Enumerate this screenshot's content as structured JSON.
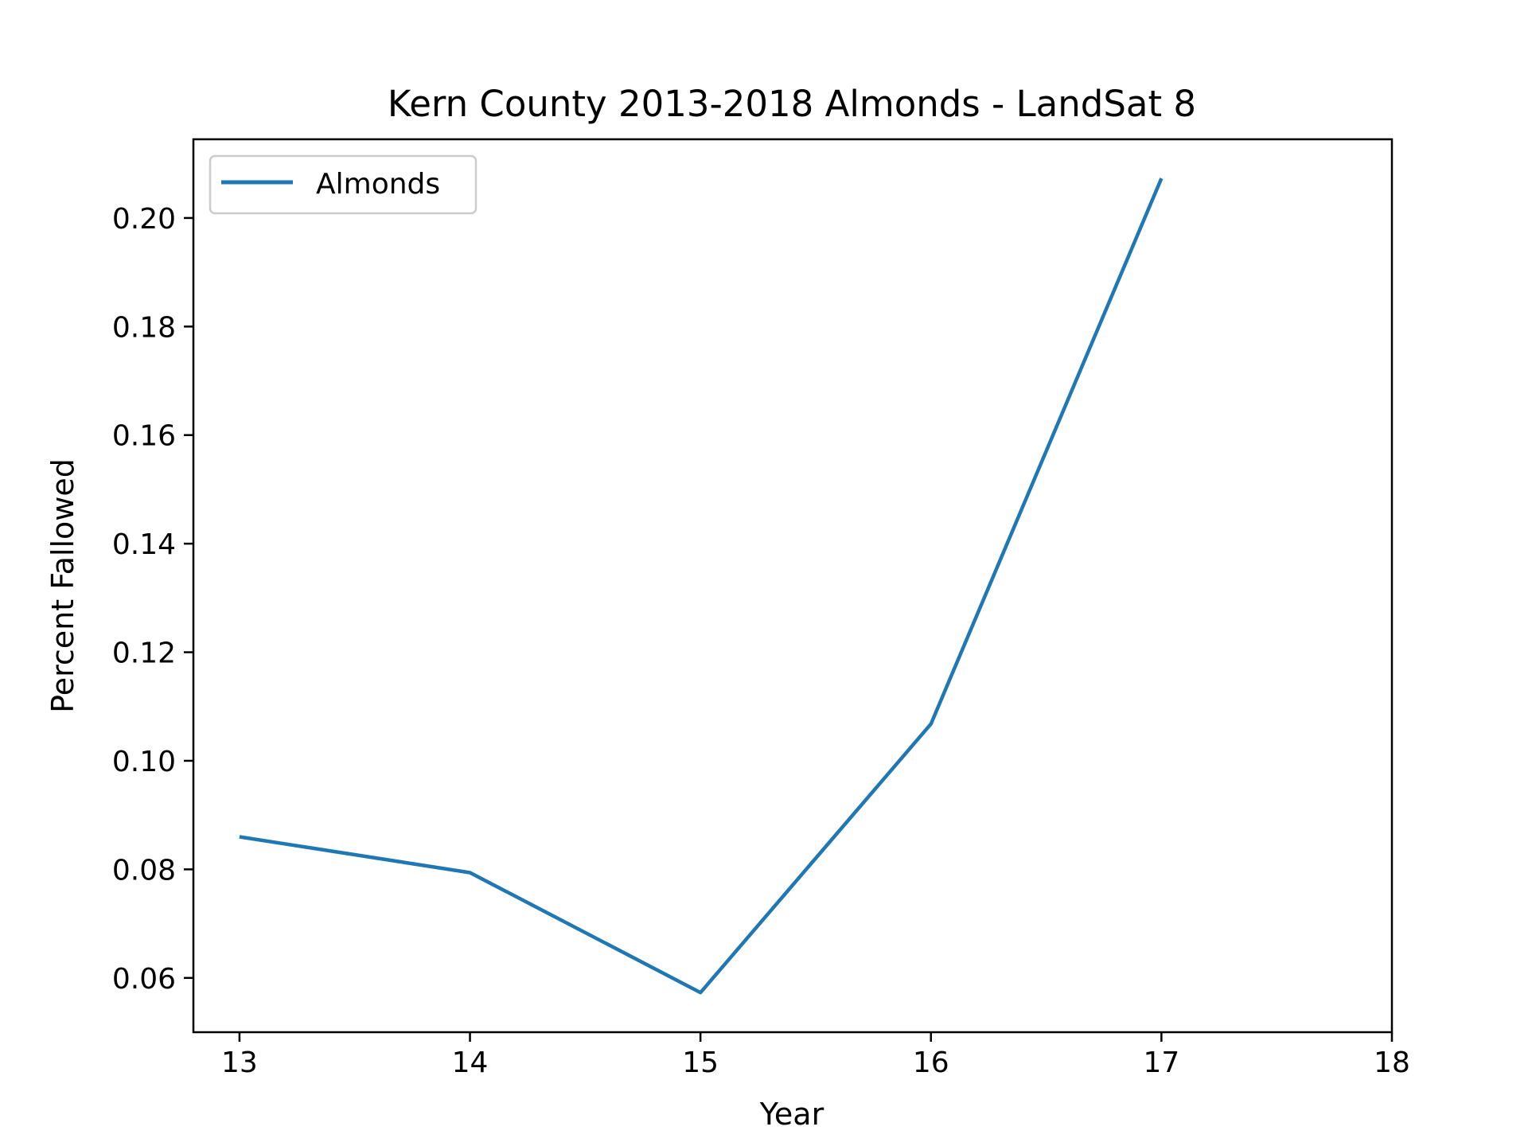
{
  "chart_data": {
    "type": "line",
    "title": "Kern County 2013-2018 Almonds - LandSat 8",
    "xlabel": "Year",
    "ylabel": "Percent Fallowed",
    "x": [
      13,
      14,
      15,
      16,
      17
    ],
    "series": [
      {
        "name": "Almonds",
        "values": [
          0.086,
          0.0794,
          0.0573,
          0.1068,
          0.2073
        ],
        "color": "#1f77b4"
      }
    ],
    "xlim": [
      12.8,
      18
    ],
    "ylim": [
      0.05,
      0.2145
    ],
    "xticks": [
      13,
      14,
      15,
      16,
      17,
      18
    ],
    "xtick_labels": [
      "13",
      "14",
      "15",
      "16",
      "17",
      "18"
    ],
    "yticks": [
      0.06,
      0.08,
      0.1,
      0.12,
      0.14,
      0.16,
      0.18,
      0.2
    ],
    "ytick_labels": [
      "0.06",
      "0.08",
      "0.10",
      "0.12",
      "0.14",
      "0.16",
      "0.18",
      "0.20"
    ],
    "grid": false,
    "legend_position": "upper-left"
  }
}
